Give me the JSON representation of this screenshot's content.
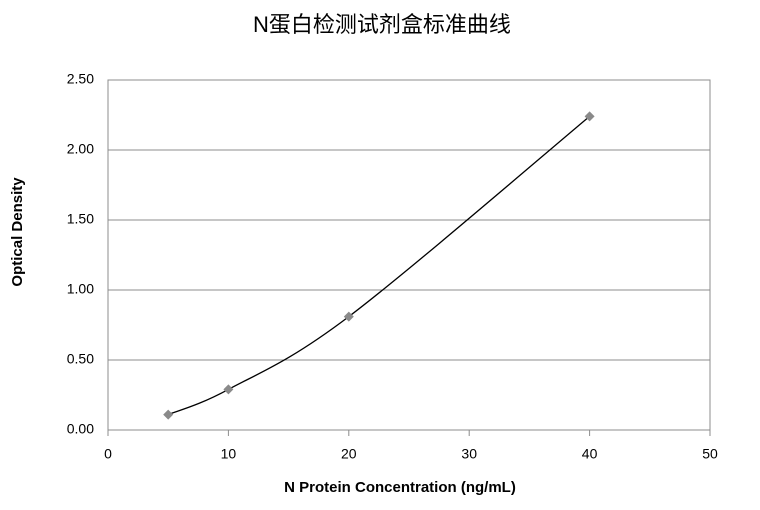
{
  "chart_data": {
    "type": "scatter",
    "title": "N蛋白检测试剂盒标准曲线",
    "x_label": "N Protein Concentration   (ng/mL)",
    "y_label": "Optical Density",
    "x": [
      5,
      10,
      20,
      40
    ],
    "values": [
      0.11,
      0.29,
      0.81,
      2.24
    ],
    "color": "#8a8a8a",
    "line_color": "#000000",
    "smooth_line": true,
    "xlim": [
      0,
      50
    ],
    "xticks": [
      0,
      10,
      20,
      30,
      40,
      50
    ],
    "ylim": [
      0,
      2.5
    ],
    "yticks": [
      {
        "value": 0,
        "label": "0.00"
      },
      {
        "value": 0.5,
        "label": "0.50"
      },
      {
        "value": 1,
        "label": "1.00"
      },
      {
        "value": 1.5,
        "label": "1.50"
      },
      {
        "value": 2,
        "label": "2.00"
      },
      {
        "value": 2.5,
        "label": "2.50"
      }
    ],
    "grid": true
  }
}
